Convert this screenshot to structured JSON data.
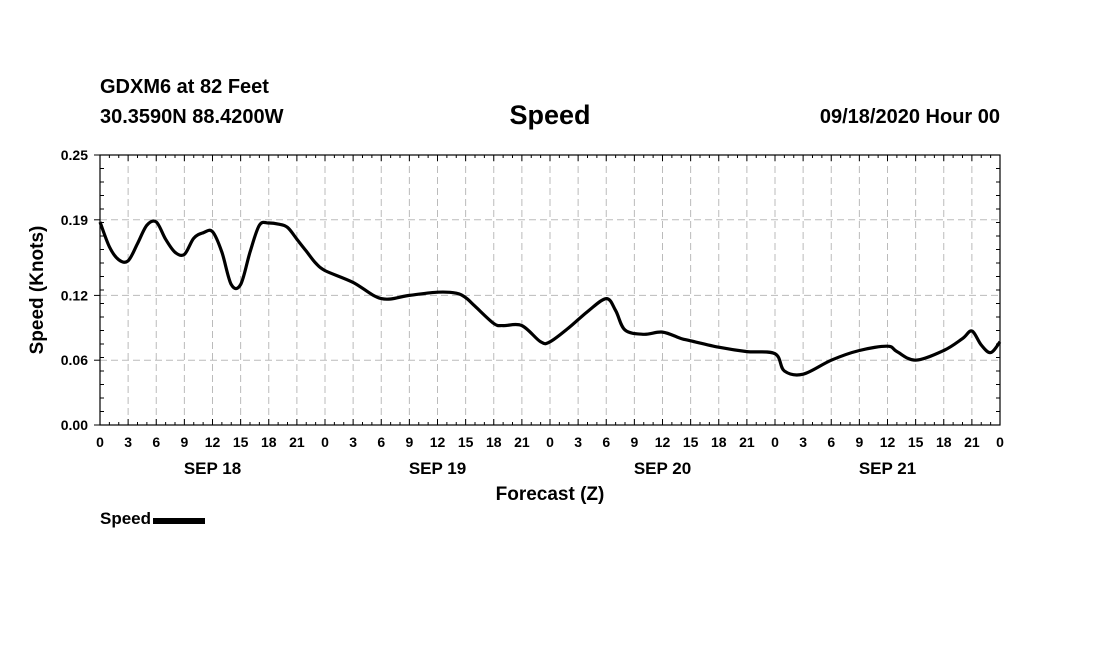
{
  "header": {
    "station": "GDXM6 at 82 Feet",
    "coords": "30.3590N 88.4200W",
    "title": "Speed",
    "datetime": "09/18/2020 Hour 00"
  },
  "legend": {
    "label": "Speed"
  },
  "colors": {
    "line": "#000000",
    "grid": "#bbbbbb",
    "axis": "#000000"
  },
  "chart_data": {
    "type": "line",
    "title": "Speed",
    "xlabel": "Forecast (Z)",
    "ylabel": "Speed (Knots)",
    "ylim": [
      0,
      0.25
    ],
    "yticks": [
      "0.00",
      "0.06",
      "0.12",
      "0.19",
      "0.25"
    ],
    "xlim_hours": [
      0,
      96
    ],
    "xtick_step_hours": 3,
    "xtick_labels": [
      "0",
      "3",
      "6",
      "9",
      "12",
      "15",
      "18",
      "21",
      "0",
      "3",
      "6",
      "9",
      "12",
      "15",
      "18",
      "21",
      "0",
      "3",
      "6",
      "9",
      "12",
      "15",
      "18",
      "21",
      "0",
      "3",
      "6",
      "9",
      "12",
      "15",
      "18",
      "21",
      "0"
    ],
    "date_labels": [
      {
        "label": "SEP 18",
        "hour": 12
      },
      {
        "label": "SEP 19",
        "hour": 36
      },
      {
        "label": "SEP 20",
        "hour": 60
      },
      {
        "label": "SEP 21",
        "hour": 84
      }
    ],
    "grid": true,
    "legend_position": "bottom-left",
    "series": [
      {
        "name": "Speed",
        "hours": [
          0,
          1,
          2,
          3,
          4,
          5,
          6,
          7,
          8,
          9,
          10,
          11,
          12,
          13,
          14,
          15,
          16,
          17,
          18,
          19,
          20,
          21,
          22,
          23,
          24,
          27,
          30,
          33,
          36,
          38,
          39,
          40,
          42,
          43,
          45,
          47,
          48,
          50,
          52,
          54,
          55,
          56,
          58,
          60,
          62,
          63,
          66,
          69,
          72,
          73,
          75,
          78,
          81,
          84,
          85,
          87,
          90,
          92,
          93,
          94,
          95,
          96
        ],
        "values": [
          0.188,
          0.165,
          0.153,
          0.152,
          0.168,
          0.185,
          0.188,
          0.172,
          0.16,
          0.158,
          0.173,
          0.178,
          0.179,
          0.16,
          0.13,
          0.13,
          0.16,
          0.185,
          0.187,
          0.186,
          0.183,
          0.172,
          0.161,
          0.15,
          0.143,
          0.132,
          0.117,
          0.12,
          0.123,
          0.122,
          0.118,
          0.11,
          0.094,
          0.092,
          0.092,
          0.077,
          0.077,
          0.09,
          0.105,
          0.117,
          0.106,
          0.088,
          0.084,
          0.086,
          0.08,
          0.078,
          0.072,
          0.068,
          0.066,
          0.05,
          0.047,
          0.06,
          0.069,
          0.073,
          0.068,
          0.06,
          0.069,
          0.08,
          0.087,
          0.074,
          0.067,
          0.077
        ]
      }
    ]
  }
}
